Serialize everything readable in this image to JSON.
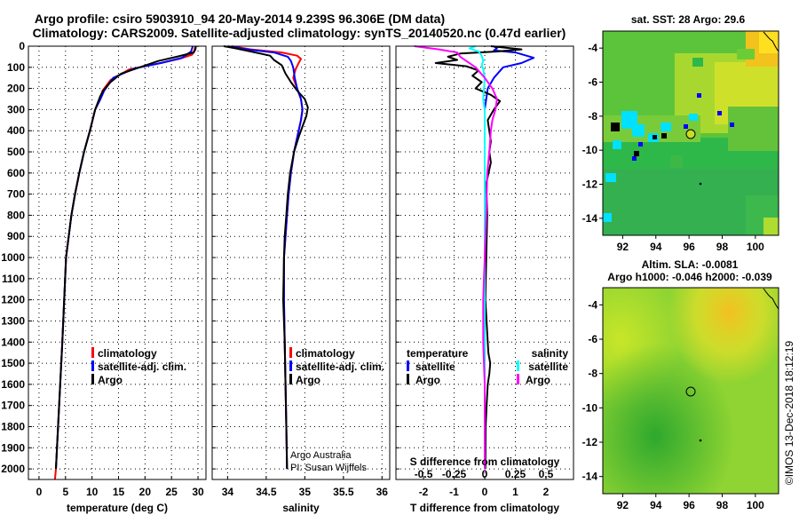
{
  "header": {
    "title_line1": "Argo profile: csiro 5903910_94 20-May-2014 9.239S 96.306E (DM data)",
    "title_line2": "Climatology: CARS2009. Satellite-adjusted climatology: synTS_20140520.nc (0.47d earlier)"
  },
  "colors": {
    "climatology": "#ff0000",
    "satellite": "#0000ff",
    "argo": "#000000",
    "salinity_argo_diff": "#ff00ff",
    "salinity_sat_diff": "#00ffff"
  },
  "legend": {
    "climatology": "climatology",
    "satellite": "satellite-adj. clim.",
    "argo": "Argo",
    "temperature_header": "temperature",
    "salinity_header": "salinity",
    "satellite_short": "satellite"
  },
  "credits": {
    "line1": "Argo Australia",
    "line2": "PI: Susan Wijffels"
  },
  "map_top": {
    "title": "sat. SST: 28 Argo: 29.6",
    "y_ticks": [
      "-4",
      "-6",
      "-8",
      "-10",
      "-12",
      "-14"
    ],
    "x_ticks": [
      "92",
      "94",
      "96",
      "98",
      "100"
    ],
    "float_position": {
      "lon": 96.306,
      "lat": -9.239
    }
  },
  "map_bottom": {
    "title_line1": "Altim. SLA: -0.0081",
    "title_line2": "Argo h1000: -0.046 h2000: -0.039",
    "y_ticks": [
      "-4",
      "-6",
      "-8",
      "-10",
      "-12",
      "-14"
    ],
    "x_ticks": [
      "92",
      "94",
      "96",
      "98",
      "100"
    ]
  },
  "stamp": "©IMOS 13-Dec-2018 18:12:19",
  "chart_data": [
    {
      "type": "line",
      "xlabel": "temperature (deg C)",
      "ylabel": "",
      "xlim": [
        -2,
        31.5
      ],
      "ylim": [
        2050,
        0
      ],
      "x_ticks": [
        0,
        5,
        10,
        15,
        20,
        25,
        30
      ],
      "y_ticks": [
        0,
        100,
        200,
        300,
        400,
        500,
        600,
        700,
        800,
        900,
        1000,
        1100,
        1200,
        1300,
        1400,
        1500,
        1600,
        1700,
        1800,
        1900,
        2000
      ],
      "grid": true,
      "legend_position": "lower-right",
      "series": [
        {
          "name": "climatology",
          "color": "#ff0000",
          "points": [
            [
              29.5,
              0
            ],
            [
              29.3,
              20
            ],
            [
              28.9,
              40
            ],
            [
              26.5,
              60
            ],
            [
              22,
              85
            ],
            [
              17,
              110
            ],
            [
              13.5,
              160
            ],
            [
              12,
              210
            ],
            [
              11.5,
              250
            ],
            [
              10.6,
              300
            ],
            [
              9.6,
              400
            ],
            [
              8.5,
              500
            ],
            [
              7.6,
              600
            ],
            [
              6.8,
              700
            ],
            [
              6.1,
              800
            ],
            [
              5.6,
              900
            ],
            [
              5.1,
              1000
            ],
            [
              4.75,
              1200
            ],
            [
              4.4,
              1400
            ],
            [
              4.0,
              1600
            ],
            [
              3.6,
              1800
            ],
            [
              3.2,
              2000
            ],
            [
              3.0,
              2050
            ]
          ]
        },
        {
          "name": "satellite-adj. clim.",
          "color": "#0000ff",
          "points": [
            [
              29,
              0
            ],
            [
              28.7,
              25
            ],
            [
              27,
              55
            ],
            [
              23,
              80
            ],
            [
              18,
              105
            ],
            [
              14,
              150
            ],
            [
              12.3,
              210
            ],
            [
              11.6,
              250
            ],
            [
              10.6,
              300
            ],
            [
              9.6,
              400
            ],
            [
              8.5,
              500
            ],
            [
              7.6,
              600
            ],
            [
              6.8,
              700
            ],
            [
              6.1,
              800
            ],
            [
              5.6,
              900
            ],
            [
              5.1,
              1000
            ],
            [
              4.75,
              1200
            ],
            [
              4.4,
              1400
            ],
            [
              4.0,
              1600
            ],
            [
              3.6,
              1800
            ],
            [
              3.2,
              2000
            ]
          ]
        },
        {
          "name": "Argo",
          "color": "#000000",
          "points": [
            [
              29.6,
              0
            ],
            [
              29.5,
              15
            ],
            [
              29.2,
              30
            ],
            [
              26,
              50
            ],
            [
              22.5,
              70
            ],
            [
              19,
              100
            ],
            [
              15.5,
              130
            ],
            [
              13.5,
              170
            ],
            [
              12.1,
              210
            ],
            [
              11.5,
              240
            ],
            [
              10.6,
              300
            ],
            [
              9.6,
              400
            ],
            [
              8.5,
              500
            ],
            [
              7.6,
              600
            ],
            [
              6.8,
              700
            ],
            [
              6.1,
              800
            ],
            [
              5.6,
              900
            ],
            [
              5.1,
              1000
            ],
            [
              4.75,
              1200
            ],
            [
              4.4,
              1400
            ],
            [
              4.0,
              1600
            ],
            [
              3.6,
              1800
            ],
            [
              3.2,
              2000
            ]
          ]
        }
      ]
    },
    {
      "type": "line",
      "xlabel": "salinity",
      "ylabel": "",
      "xlim": [
        33.8,
        36.1
      ],
      "ylim": [
        2050,
        0
      ],
      "x_ticks": [
        34,
        34.5,
        35,
        35.5,
        36
      ],
      "grid": true,
      "legend_position": "lower-right",
      "series": [
        {
          "name": "climatology",
          "color": "#ff0000",
          "points": [
            [
              34.05,
              0
            ],
            [
              34.3,
              15
            ],
            [
              34.7,
              30
            ],
            [
              34.9,
              45
            ],
            [
              34.95,
              60
            ],
            [
              34.92,
              80
            ],
            [
              34.88,
              110
            ],
            [
              34.85,
              150
            ],
            [
              34.9,
              200
            ],
            [
              34.95,
              250
            ],
            [
              34.97,
              300
            ],
            [
              34.95,
              350
            ],
            [
              34.92,
              400
            ],
            [
              34.86,
              500
            ],
            [
              34.82,
              600
            ],
            [
              34.79,
              700
            ],
            [
              34.77,
              800
            ],
            [
              34.75,
              900
            ],
            [
              34.73,
              1000
            ],
            [
              34.73,
              1200
            ],
            [
              34.74,
              1400
            ],
            [
              34.75,
              1600
            ],
            [
              34.76,
              1800
            ],
            [
              34.77,
              2000
            ]
          ]
        },
        {
          "name": "satellite-adj. clim.",
          "color": "#0000ff",
          "points": [
            [
              34.0,
              0
            ],
            [
              34.25,
              15
            ],
            [
              34.6,
              30
            ],
            [
              34.78,
              50
            ],
            [
              34.82,
              70
            ],
            [
              34.85,
              100
            ],
            [
              34.87,
              150
            ],
            [
              34.9,
              200
            ],
            [
              34.95,
              250
            ],
            [
              34.97,
              300
            ],
            [
              34.95,
              350
            ],
            [
              34.92,
              400
            ],
            [
              34.86,
              500
            ],
            [
              34.82,
              600
            ],
            [
              34.79,
              700
            ],
            [
              34.77,
              800
            ],
            [
              34.75,
              900
            ],
            [
              34.73,
              1000
            ],
            [
              34.73,
              1200
            ],
            [
              34.74,
              1400
            ],
            [
              34.75,
              1600
            ],
            [
              34.76,
              1800
            ],
            [
              34.77,
              2000
            ]
          ]
        },
        {
          "name": "Argo",
          "color": "#000000",
          "points": [
            [
              33.95,
              0
            ],
            [
              34.1,
              10
            ],
            [
              34.3,
              25
            ],
            [
              34.55,
              45
            ],
            [
              34.6,
              65
            ],
            [
              34.7,
              90
            ],
            [
              34.75,
              130
            ],
            [
              34.82,
              170
            ],
            [
              34.9,
              210
            ],
            [
              35.0,
              250
            ],
            [
              35.04,
              290
            ],
            [
              35.02,
              330
            ],
            [
              34.97,
              380
            ],
            [
              34.92,
              430
            ],
            [
              34.86,
              500
            ],
            [
              34.81,
              600
            ],
            [
              34.78,
              700
            ],
            [
              34.76,
              800
            ],
            [
              34.74,
              900
            ],
            [
              34.73,
              1000
            ],
            [
              34.72,
              1200
            ],
            [
              34.74,
              1400
            ],
            [
              34.75,
              1600
            ],
            [
              34.76,
              1800
            ],
            [
              34.77,
              2000
            ]
          ]
        }
      ]
    },
    {
      "type": "line",
      "xlabel": "T difference from climatology",
      "xlabel_top": "S difference from climatology",
      "ylabel": "",
      "xlim": [
        -2.9,
        2.9
      ],
      "ylim": [
        2050,
        0
      ],
      "x_ticks": [
        -2,
        -1,
        0,
        1,
        2
      ],
      "x_ticks_top": [
        "-0.5",
        "-0.25",
        "0",
        "0.25",
        "0.5"
      ],
      "grid": true,
      "legend_position": "lower-center",
      "series": [
        {
          "name": "satellite (temperature)",
          "color": "#0000ff",
          "points": [
            [
              0.3,
              0
            ],
            [
              0.4,
              10
            ],
            [
              0.3,
              20
            ],
            [
              1.0,
              30
            ],
            [
              1.6,
              55
            ],
            [
              1.2,
              80
            ],
            [
              0.6,
              100
            ],
            [
              0.3,
              150
            ],
            [
              0.1,
              200
            ],
            [
              0.05,
              250
            ],
            [
              0,
              300
            ],
            [
              0,
              400
            ],
            [
              0,
              600
            ],
            [
              0,
              800
            ],
            [
              0,
              1000
            ],
            [
              0,
              1200
            ],
            [
              0,
              1400
            ],
            [
              0,
              1600
            ],
            [
              0,
              1800
            ],
            [
              0,
              2000
            ]
          ]
        },
        {
          "name": "Argo (temperature)",
          "color": "#000000",
          "points": [
            [
              0.2,
              0
            ],
            [
              1.2,
              15
            ],
            [
              0.4,
              25
            ],
            [
              -0.8,
              35
            ],
            [
              -1.2,
              50
            ],
            [
              -0.9,
              65
            ],
            [
              -1.6,
              80
            ],
            [
              -0.6,
              95
            ],
            [
              -0.2,
              115
            ],
            [
              -0.4,
              140
            ],
            [
              -0.1,
              170
            ],
            [
              -0.3,
              200
            ],
            [
              0.2,
              230
            ],
            [
              0.5,
              260
            ],
            [
              0.3,
              300
            ],
            [
              0.1,
              350
            ],
            [
              0.2,
              450
            ],
            [
              0.15,
              500
            ],
            [
              0.2,
              550
            ],
            [
              0.05,
              650
            ],
            [
              0.08,
              800
            ],
            [
              0.05,
              1000
            ],
            [
              0.02,
              1200
            ],
            [
              0.1,
              1400
            ],
            [
              0.12,
              1450
            ],
            [
              0.18,
              1500
            ],
            [
              0.15,
              1550
            ],
            [
              0.1,
              1600
            ],
            [
              0.06,
              1700
            ],
            [
              0.03,
              1800
            ],
            [
              0.02,
              2000
            ]
          ]
        },
        {
          "name": "satellite (salinity)",
          "color": "#00ffff",
          "points": [
            [
              -0.3,
              0
            ],
            [
              -0.5,
              10
            ],
            [
              -0.2,
              25
            ],
            [
              -0.1,
              45
            ],
            [
              -0.05,
              70
            ],
            [
              -0.1,
              90
            ],
            [
              -0.05,
              110
            ],
            [
              0,
              150
            ],
            [
              -0.05,
              250
            ],
            [
              0,
              300
            ],
            [
              0,
              400
            ],
            [
              0,
              600
            ],
            [
              0,
              800
            ],
            [
              0,
              1000
            ],
            [
              0,
              1200
            ],
            [
              0,
              1400
            ],
            [
              0,
              1600
            ],
            [
              0,
              1800
            ],
            [
              0,
              2000
            ]
          ]
        },
        {
          "name": "Argo (salinity)",
          "color": "#ff00ff",
          "points": [
            [
              -2.3,
              0
            ],
            [
              -1.5,
              15
            ],
            [
              -0.9,
              30
            ],
            [
              -0.8,
              50
            ],
            [
              -0.6,
              70
            ],
            [
              -0.3,
              100
            ],
            [
              0,
              150
            ],
            [
              0.25,
              200
            ],
            [
              0.4,
              250
            ],
            [
              0.35,
              300
            ],
            [
              0.25,
              350
            ],
            [
              0.2,
              400
            ],
            [
              0.15,
              500
            ],
            [
              0.08,
              600
            ],
            [
              0.05,
              800
            ],
            [
              0,
              1000
            ],
            [
              -0.05,
              1200
            ],
            [
              -0.05,
              1400
            ],
            [
              0,
              1600
            ],
            [
              0,
              1800
            ],
            [
              0,
              2000
            ]
          ]
        }
      ]
    }
  ]
}
